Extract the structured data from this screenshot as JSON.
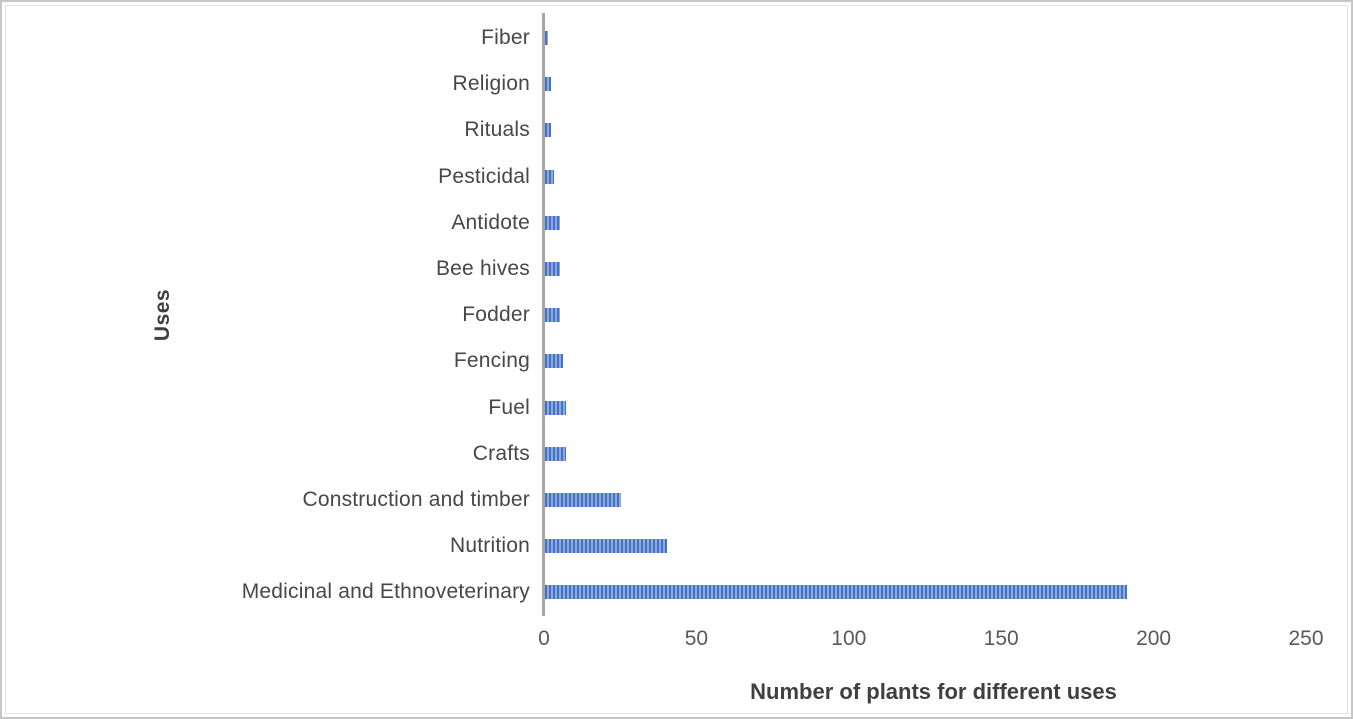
{
  "frame": {
    "background": "#ffffff",
    "outer_border_color": "#c6c6c6",
    "inner_border_color": "#e4e4e4"
  },
  "chart_data": {
    "type": "bar",
    "orientation": "horizontal",
    "title": "",
    "xlabel": "Number of plants for different uses",
    "ylabel": "Uses",
    "categories": [
      "Fiber",
      "Religion",
      "Rituals",
      "Pesticidal",
      "Antidote",
      "Bee hives",
      "Fodder",
      "Fencing",
      "Fuel",
      "Crafts",
      "Construction and timber",
      "Nutrition",
      "Medicinal and Ethnoveterinary"
    ],
    "values": [
      1,
      2,
      2,
      3,
      5,
      5,
      5,
      6,
      7,
      7,
      25,
      40,
      191
    ],
    "xlim": [
      0,
      250
    ],
    "xticks": [
      0,
      50,
      100,
      150,
      200,
      250
    ],
    "grid": false,
    "legend": false,
    "bar_fill_pattern": "vertical-stripes",
    "bar_color_dark": "#4472c4",
    "bar_color_light": "#8ea9dc",
    "axis_line_color": "#a6a6a6",
    "tick_label_color": "#595959",
    "category_label_color": "#474747",
    "axis_title_color": "#3f3f3f"
  }
}
